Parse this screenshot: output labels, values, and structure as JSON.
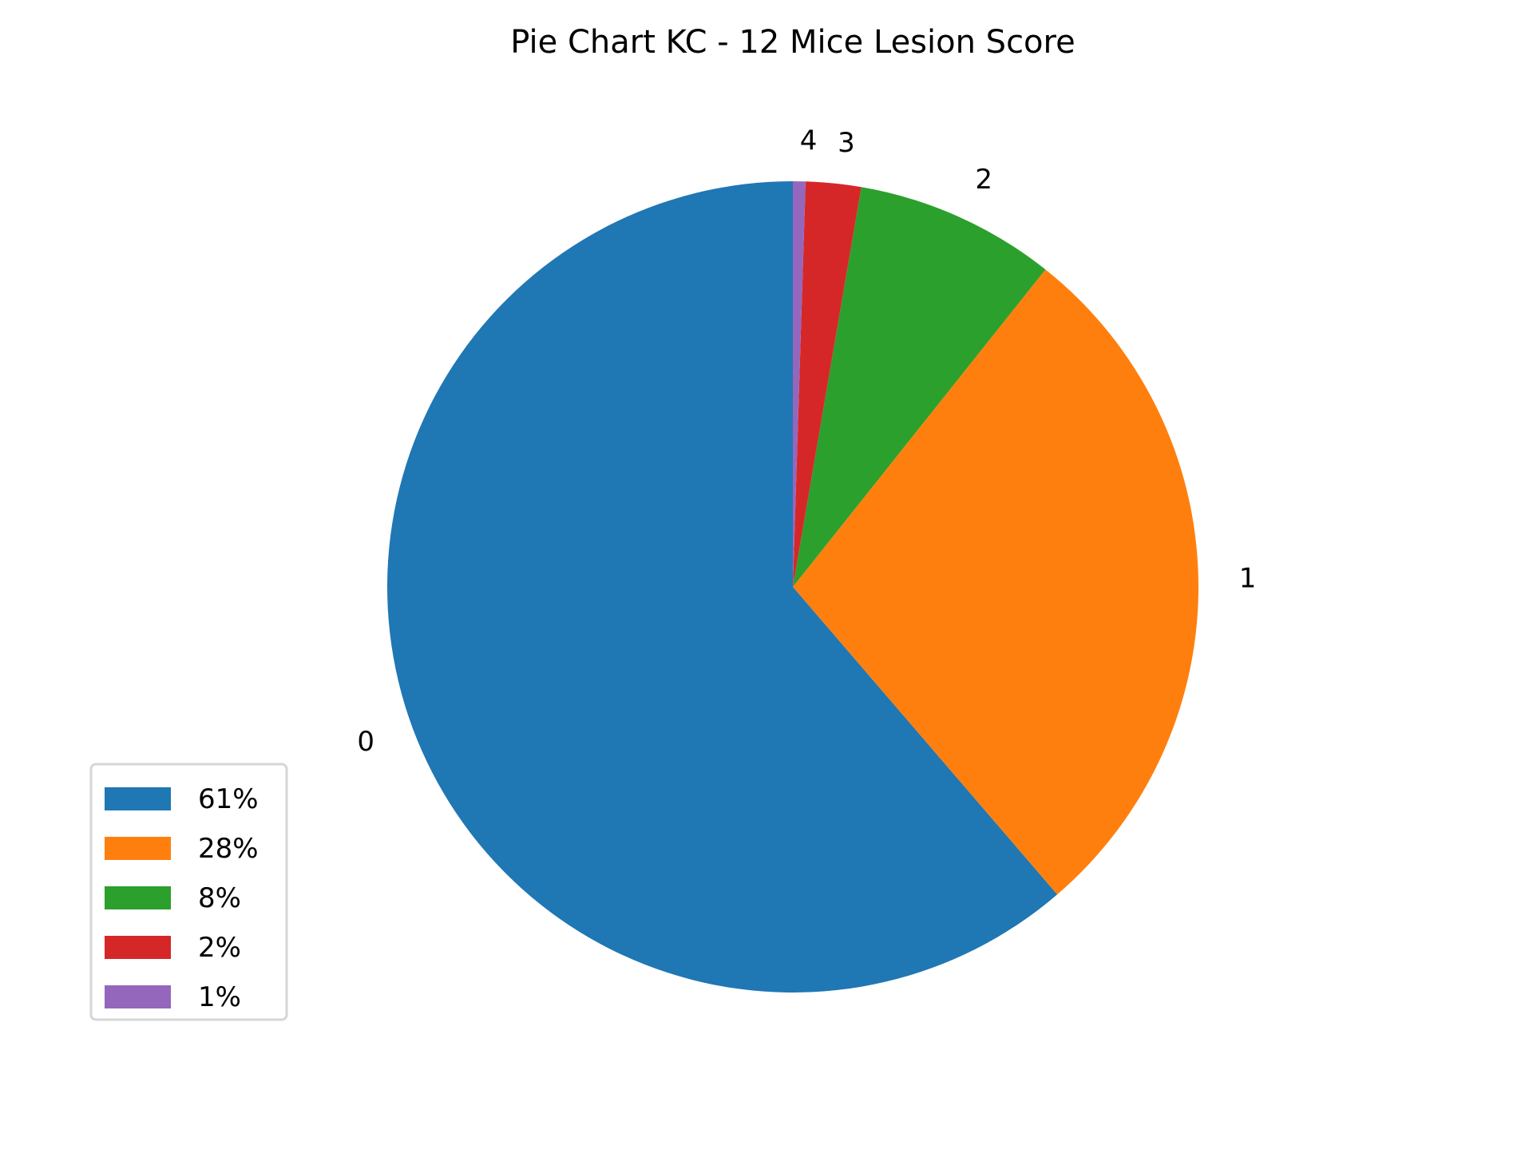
{
  "chart_data": {
    "type": "pie",
    "title": "Pie Chart KC - 12 Mice Lesion Score",
    "start_angle_deg": 90,
    "direction": "counterclockwise",
    "slices": [
      {
        "label": "0",
        "value": 61.3,
        "legend_label": "61%",
        "color": "#1f77b4"
      },
      {
        "label": "1",
        "value": 28.0,
        "legend_label": "28%",
        "color": "#ff7f0e"
      },
      {
        "label": "2",
        "value": 8.0,
        "legend_label": "8%",
        "color": "#2ca02c"
      },
      {
        "label": "3",
        "value": 2.2,
        "legend_label": "2%",
        "color": "#d62728"
      },
      {
        "label": "4",
        "value": 0.5,
        "legend_label": "1%",
        "color": "#9467bd"
      }
    ],
    "legend_position": "lower-left"
  }
}
